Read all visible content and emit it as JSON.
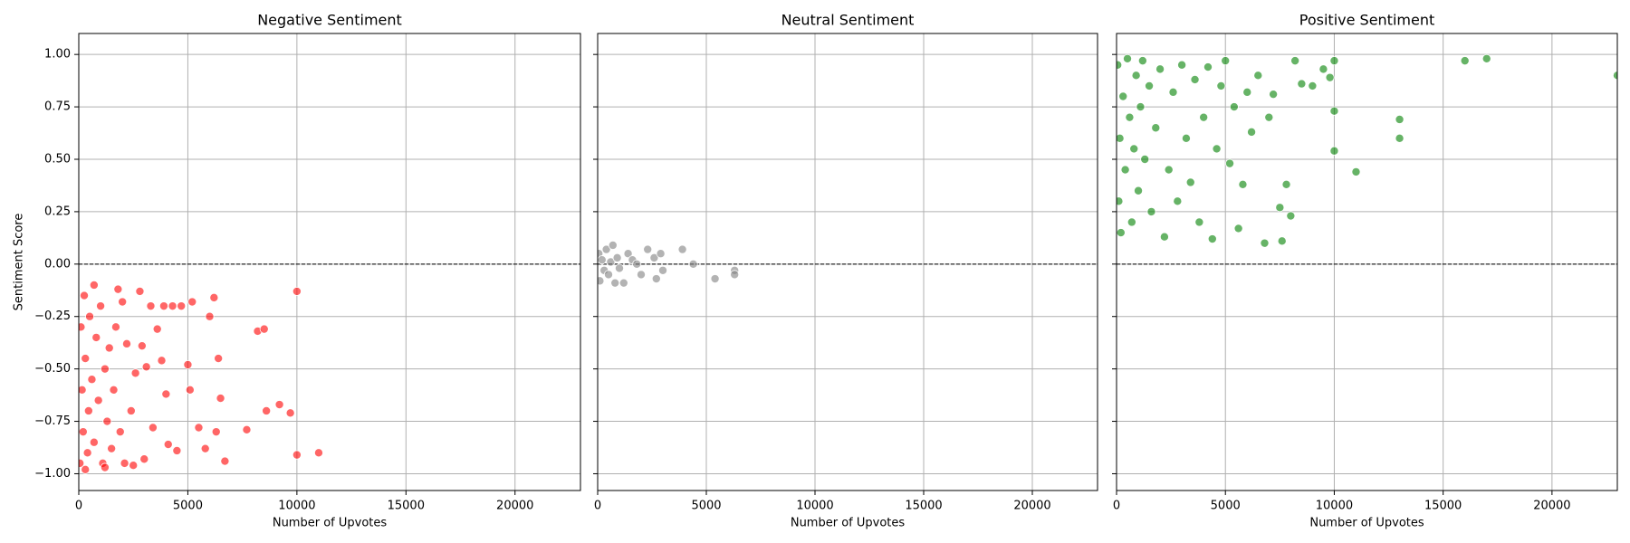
{
  "chart_data": [
    {
      "type": "scatter",
      "title": "Negative Sentiment",
      "xlabel": "Number of Upvotes",
      "ylabel": "Sentiment Score",
      "color": "#ff0000",
      "xlim": [
        0,
        23000
      ],
      "ylim": [
        -1.08,
        1.1
      ],
      "xticks": [
        0,
        5000,
        10000,
        15000,
        20000
      ],
      "yticks": [
        {
          "value": 1,
          "label": "1.00"
        },
        {
          "value": 0.75,
          "label": "0.75"
        },
        {
          "value": 0.5,
          "label": "0.50"
        },
        {
          "value": 0.25,
          "label": "0.25"
        },
        {
          "value": 0,
          "label": "0.00"
        },
        {
          "value": -0.25,
          "label": "−0.25"
        },
        {
          "value": -0.5,
          "label": "−0.50"
        },
        {
          "value": -0.75,
          "label": "−0.75"
        },
        {
          "value": -1,
          "label": "−1.00"
        }
      ],
      "grid": true,
      "reference_line": 0,
      "x": [
        50,
        100,
        150,
        200,
        250,
        300,
        400,
        450,
        500,
        600,
        700,
        800,
        900,
        1000,
        1100,
        1200,
        1300,
        1400,
        1500,
        1600,
        1700,
        1800,
        1900,
        2000,
        2100,
        2200,
        2400,
        2600,
        2800,
        2900,
        3000,
        3100,
        3300,
        3400,
        3600,
        3800,
        3900,
        4000,
        4100,
        4300,
        4500,
        4700,
        5000,
        5100,
        5200,
        5500,
        5800,
        6000,
        6200,
        6300,
        6400,
        6500,
        6700,
        7700,
        8200,
        8500,
        8600,
        9200,
        9700,
        10000,
        10000,
        11000,
        300,
        700,
        1200,
        2500
      ],
      "values": [
        -0.95,
        -0.3,
        -0.6,
        -0.8,
        -0.15,
        -0.45,
        -0.9,
        -0.7,
        -0.25,
        -0.55,
        -0.85,
        -0.35,
        -0.65,
        -0.2,
        -0.95,
        -0.5,
        -0.75,
        -0.4,
        -0.88,
        -0.6,
        -0.3,
        -0.12,
        -0.8,
        -0.18,
        -0.95,
        -0.38,
        -0.7,
        -0.52,
        -0.13,
        -0.39,
        -0.93,
        -0.49,
        -0.2,
        -0.78,
        -0.31,
        -0.46,
        -0.2,
        -0.62,
        -0.86,
        -0.2,
        -0.89,
        -0.2,
        -0.48,
        -0.6,
        -0.18,
        -0.78,
        -0.88,
        -0.25,
        -0.16,
        -0.8,
        -0.45,
        -0.64,
        -0.94,
        -0.79,
        -0.32,
        -0.31,
        -0.7,
        -0.67,
        -0.71,
        -0.13,
        -0.91,
        -0.9,
        -0.98,
        -0.1,
        -0.97,
        -0.96
      ]
    },
    {
      "type": "scatter",
      "title": "Neutral Sentiment",
      "xlabel": "Number of Upvotes",
      "color": "#808080",
      "xlim": [
        0,
        23000
      ],
      "ylim": [
        -1.08,
        1.1
      ],
      "xticks": [
        0,
        5000,
        10000,
        15000,
        20000
      ],
      "yticks": [
        1,
        0.75,
        0.5,
        0.25,
        0,
        -0.25,
        -0.5,
        -0.75,
        -1
      ],
      "grid": true,
      "reference_line": 0,
      "x": [
        50,
        100,
        200,
        300,
        400,
        500,
        600,
        700,
        800,
        900,
        1000,
        1200,
        1400,
        1600,
        1800,
        2000,
        2300,
        2600,
        2700,
        2900,
        3000,
        3900,
        4400,
        5400,
        6300,
        6300
      ],
      "values": [
        0.05,
        -0.08,
        0.02,
        -0.03,
        0.07,
        -0.05,
        0.01,
        0.09,
        -0.09,
        0.03,
        -0.02,
        -0.09,
        0.05,
        0.02,
        0,
        -0.05,
        0.07,
        0.03,
        -0.07,
        0.05,
        -0.03,
        0.07,
        0,
        -0.07,
        -0.03,
        -0.05
      ]
    },
    {
      "type": "scatter",
      "title": "Positive Sentiment",
      "xlabel": "Number of Upvotes",
      "color": "#008000",
      "xlim": [
        0,
        23000
      ],
      "ylim": [
        -1.08,
        1.1
      ],
      "xticks": [
        0,
        5000,
        10000,
        15000,
        20000
      ],
      "yticks": [
        1,
        0.75,
        0.5,
        0.25,
        0,
        -0.25,
        -0.5,
        -0.75,
        -1
      ],
      "grid": true,
      "reference_line": 0,
      "x": [
        50,
        100,
        150,
        200,
        300,
        400,
        500,
        600,
        700,
        800,
        900,
        1000,
        1100,
        1200,
        1300,
        1500,
        1600,
        1800,
        2000,
        2200,
        2400,
        2600,
        2800,
        3000,
        3200,
        3400,
        3600,
        3800,
        4000,
        4200,
        4400,
        4600,
        4800,
        5000,
        5200,
        5400,
        5600,
        5800,
        6000,
        6200,
        6500,
        6800,
        7000,
        7200,
        7500,
        7600,
        7800,
        8000,
        8200,
        8500,
        9000,
        9500,
        9800,
        10000,
        10000,
        10000,
        11000,
        13000,
        13000,
        16000,
        17000,
        23000
      ],
      "values": [
        0.95,
        0.3,
        0.6,
        0.15,
        0.8,
        0.45,
        0.98,
        0.7,
        0.2,
        0.55,
        0.9,
        0.35,
        0.75,
        0.97,
        0.5,
        0.85,
        0.25,
        0.65,
        0.93,
        0.13,
        0.45,
        0.82,
        0.3,
        0.95,
        0.6,
        0.39,
        0.88,
        0.2,
        0.7,
        0.94,
        0.12,
        0.55,
        0.85,
        0.97,
        0.48,
        0.75,
        0.17,
        0.38,
        0.82,
        0.63,
        0.9,
        0.1,
        0.7,
        0.81,
        0.27,
        0.11,
        0.38,
        0.23,
        0.97,
        0.86,
        0.85,
        0.93,
        0.89,
        0.97,
        0.73,
        0.54,
        0.44,
        0.69,
        0.6,
        0.97,
        0.98,
        0.9
      ]
    }
  ]
}
